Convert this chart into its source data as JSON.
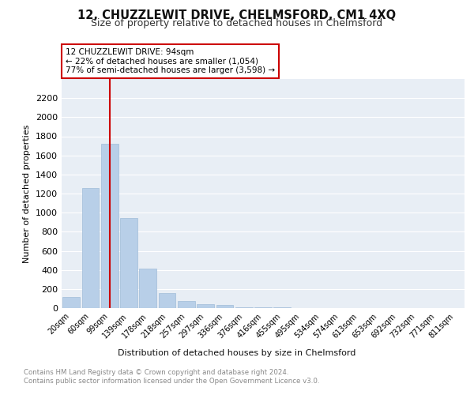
{
  "title": "12, CHUZZLEWIT DRIVE, CHELMSFORD, CM1 4XQ",
  "subtitle": "Size of property relative to detached houses in Chelmsford",
  "xlabel": "Distribution of detached houses by size in Chelmsford",
  "ylabel": "Number of detached properties",
  "categories": [
    "20sqm",
    "60sqm",
    "99sqm",
    "139sqm",
    "178sqm",
    "218sqm",
    "257sqm",
    "297sqm",
    "336sqm",
    "376sqm",
    "416sqm",
    "455sqm",
    "495sqm",
    "534sqm",
    "574sqm",
    "613sqm",
    "653sqm",
    "692sqm",
    "732sqm",
    "771sqm",
    "811sqm"
  ],
  "values": [
    120,
    1260,
    1720,
    940,
    410,
    155,
    75,
    40,
    35,
    10,
    5,
    5,
    3,
    2,
    2,
    2,
    2,
    2,
    2,
    2,
    2
  ],
  "bar_color": "#b8cfe8",
  "bar_edgecolor": "#a0bcd8",
  "vline_color": "#cc0000",
  "vline_x": 2.0,
  "annotation_text_line1": "12 CHUZZLEWIT DRIVE: 94sqm",
  "annotation_text_line2": "← 22% of detached houses are smaller (1,054)",
  "annotation_text_line3": "77% of semi-detached houses are larger (3,598) →",
  "annotation_box_color": "#cc0000",
  "ylim": [
    0,
    2400
  ],
  "yticks": [
    0,
    200,
    400,
    600,
    800,
    1000,
    1200,
    1400,
    1600,
    1800,
    2000,
    2200
  ],
  "footer_text": "Contains HM Land Registry data © Crown copyright and database right 2024.\nContains public sector information licensed under the Open Government Licence v3.0.",
  "background_color": "#ffffff",
  "plot_bg_color": "#e8eef5",
  "grid_color": "#ffffff",
  "title_fontsize": 10.5,
  "subtitle_fontsize": 9,
  "tick_label_fontsize": 7,
  "ylabel_fontsize": 8
}
